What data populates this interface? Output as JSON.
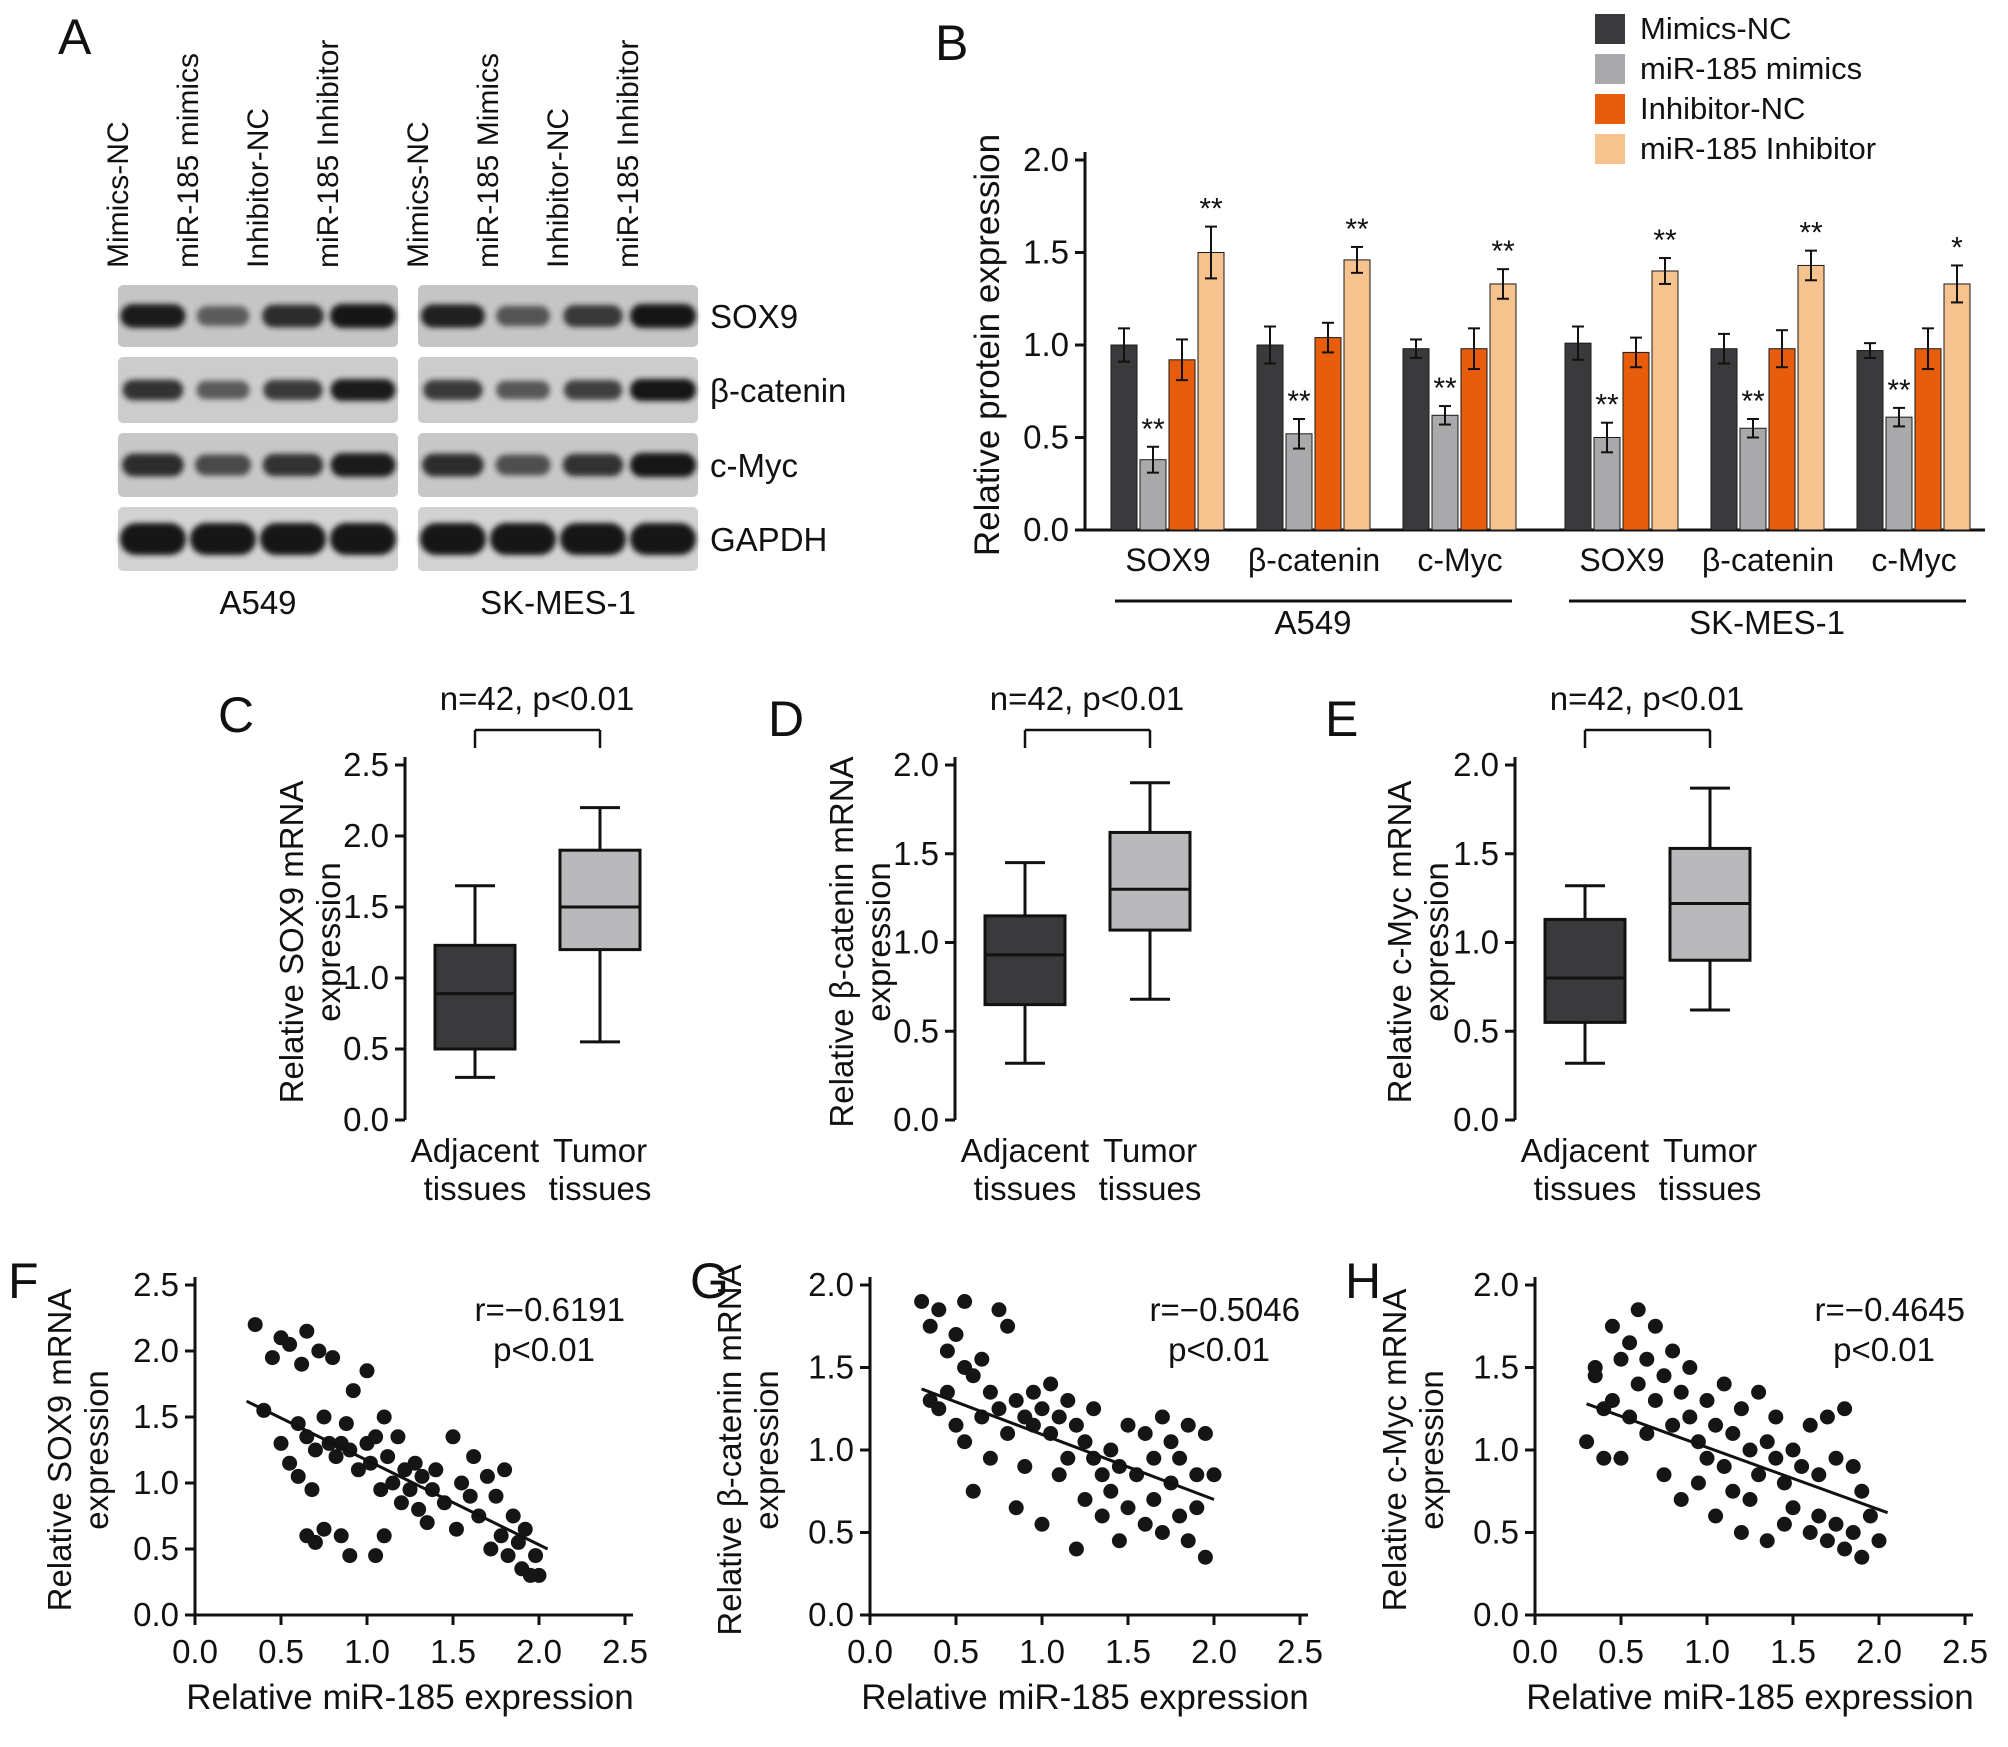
{
  "panels": {
    "A": {
      "label": "A",
      "lanes": [
        "Mimics-NC",
        "miR-185 mimics",
        "Inhibitor-NC",
        "miR-185 Inhibitor",
        "Mimics-NC",
        "miR-185 Mimics",
        "Inhibitor-NC",
        "miR-185 Inhibitor"
      ],
      "proteins": [
        "SOX9",
        "β-catenin",
        "c-Myc",
        "GAPDH"
      ],
      "cell_lines": [
        "A549",
        "SK-MES-1"
      ],
      "band_intensities": [
        [
          0.95,
          0.38,
          0.8,
          1.0,
          0.9,
          0.45,
          0.7,
          1.0
        ],
        [
          0.75,
          0.42,
          0.7,
          0.95,
          0.7,
          0.45,
          0.65,
          1.0
        ],
        [
          0.8,
          0.55,
          0.75,
          0.95,
          0.8,
          0.5,
          0.75,
          1.0
        ],
        [
          1,
          1,
          1,
          1,
          1,
          1,
          1,
          1
        ]
      ]
    },
    "B": {
      "label": "B"
    },
    "C": {
      "label": "C"
    },
    "D": {
      "label": "D"
    },
    "E": {
      "label": "E"
    },
    "F": {
      "label": "F"
    },
    "G": {
      "label": "G"
    },
    "H": {
      "label": "H"
    }
  },
  "chart_data": [
    {
      "id": "B",
      "type": "bar",
      "ylabel": "Relative protein expression",
      "ylim": [
        0,
        2.0
      ],
      "yticks": [
        0,
        0.5,
        1.0,
        1.5,
        2.0
      ],
      "categories": [
        "SOX9",
        "β-catenin",
        "c-Myc",
        "SOX9",
        "β-catenin",
        "c-Myc"
      ],
      "group_labels": [
        "A549",
        "SK-MES-1"
      ],
      "legend_position": "top-right",
      "series": [
        {
          "name": "Mimics-NC",
          "color": "#3a3a3c",
          "values": [
            1.0,
            1.0,
            0.98,
            1.01,
            0.98,
            0.97
          ],
          "errors": [
            0.09,
            0.1,
            0.05,
            0.09,
            0.08,
            0.04
          ],
          "sig": [
            "",
            "",
            "",
            "",
            "",
            ""
          ]
        },
        {
          "name": "miR-185 mimics",
          "color": "#a9a9ab",
          "values": [
            0.38,
            0.52,
            0.62,
            0.5,
            0.55,
            0.61
          ],
          "errors": [
            0.07,
            0.08,
            0.05,
            0.08,
            0.05,
            0.05
          ],
          "sig": [
            "**",
            "**",
            "**",
            "**",
            "**",
            "**"
          ]
        },
        {
          "name": "Inhibitor-NC",
          "color": "#e85d0c",
          "values": [
            0.92,
            1.04,
            0.98,
            0.96,
            0.98,
            0.98
          ],
          "errors": [
            0.11,
            0.08,
            0.11,
            0.08,
            0.1,
            0.11
          ],
          "sig": [
            "",
            "",
            "",
            "",
            "",
            ""
          ]
        },
        {
          "name": "miR-185 Inhibitor",
          "color": "#f6c28d",
          "values": [
            1.5,
            1.46,
            1.33,
            1.4,
            1.43,
            1.33
          ],
          "errors": [
            0.14,
            0.07,
            0.08,
            0.07,
            0.08,
            0.1
          ],
          "sig": [
            "**",
            "**",
            "**",
            "**",
            "**",
            "*"
          ]
        }
      ]
    },
    {
      "id": "C",
      "type": "box",
      "annotation": "n=42, p<0.01",
      "ylabel_lines": [
        "Relative SOX9 mRNA",
        "expression"
      ],
      "ylim": [
        0,
        2.5
      ],
      "yticks": [
        0,
        0.5,
        1.0,
        1.5,
        2.0,
        2.5
      ],
      "categories": [
        [
          "Adjacent",
          "tissues"
        ],
        [
          "Tumor",
          "tissues"
        ]
      ],
      "boxes": [
        {
          "whisker_low": 0.3,
          "q1": 0.5,
          "median": 0.89,
          "q3": 1.23,
          "whisker_high": 1.65,
          "fill": "#3a3a3c"
        },
        {
          "whisker_low": 0.55,
          "q1": 1.2,
          "median": 1.5,
          "q3": 1.9,
          "whisker_high": 2.2,
          "fill": "#b9b9bb"
        }
      ]
    },
    {
      "id": "D",
      "type": "box",
      "annotation": "n=42, p<0.01",
      "ylabel_lines": [
        "Relative β-catenin mRNA",
        "expression"
      ],
      "ylim": [
        0,
        2.0
      ],
      "yticks": [
        0,
        0.5,
        1.0,
        1.5,
        2.0
      ],
      "categories": [
        [
          "Adjacent",
          "tissues"
        ],
        [
          "Tumor",
          "tissues"
        ]
      ],
      "boxes": [
        {
          "whisker_low": 0.32,
          "q1": 0.65,
          "median": 0.93,
          "q3": 1.15,
          "whisker_high": 1.45,
          "fill": "#3a3a3c"
        },
        {
          "whisker_low": 0.68,
          "q1": 1.07,
          "median": 1.3,
          "q3": 1.62,
          "whisker_high": 1.9,
          "fill": "#b9b9bb"
        }
      ]
    },
    {
      "id": "E",
      "type": "box",
      "annotation": "n=42, p<0.01",
      "ylabel_lines": [
        "Relative c-Myc mRNA",
        "expression"
      ],
      "ylim": [
        0,
        2.0
      ],
      "yticks": [
        0,
        0.5,
        1.0,
        1.5,
        2.0
      ],
      "categories": [
        [
          "Adjacent",
          "tissues"
        ],
        [
          "Tumor",
          "tissues"
        ]
      ],
      "boxes": [
        {
          "whisker_low": 0.32,
          "q1": 0.55,
          "median": 0.8,
          "q3": 1.13,
          "whisker_high": 1.32,
          "fill": "#3a3a3c"
        },
        {
          "whisker_low": 0.62,
          "q1": 0.9,
          "median": 1.22,
          "q3": 1.53,
          "whisker_high": 1.87,
          "fill": "#b9b9bb"
        }
      ]
    },
    {
      "id": "F",
      "type": "scatter",
      "annotation_lines": [
        "r=−0.6191",
        "p<0.01"
      ],
      "xlabel": "Relative miR-185 expression",
      "ylabel_lines": [
        "Relative SOX9 mRNA",
        "expression"
      ],
      "xlim": [
        0,
        2.5
      ],
      "ylim": [
        0,
        2.5
      ],
      "xticks": [
        0,
        0.5,
        1.0,
        1.5,
        2.0,
        2.5
      ],
      "yticks": [
        0,
        0.5,
        1.0,
        1.5,
        2.0,
        2.5
      ],
      "regression_line": {
        "x1": 0.3,
        "y1": 1.62,
        "x2": 2.05,
        "y2": 0.5
      },
      "points": [
        [
          0.35,
          2.2
        ],
        [
          0.45,
          1.95
        ],
        [
          0.5,
          2.1
        ],
        [
          0.55,
          2.05
        ],
        [
          0.62,
          1.9
        ],
        [
          0.65,
          2.15
        ],
        [
          0.4,
          1.55
        ],
        [
          0.5,
          1.3
        ],
        [
          0.55,
          1.15
        ],
        [
          0.6,
          1.45
        ],
        [
          0.6,
          1.05
        ],
        [
          0.65,
          1.35
        ],
        [
          0.65,
          0.6
        ],
        [
          0.68,
          0.95
        ],
        [
          0.7,
          1.25
        ],
        [
          0.7,
          0.55
        ],
        [
          0.72,
          2.0
        ],
        [
          0.75,
          1.5
        ],
        [
          0.75,
          0.65
        ],
        [
          0.78,
          1.3
        ],
        [
          0.8,
          1.95
        ],
        [
          0.82,
          1.2
        ],
        [
          0.85,
          1.3
        ],
        [
          0.85,
          0.6
        ],
        [
          0.88,
          1.45
        ],
        [
          0.9,
          1.25
        ],
        [
          0.9,
          0.45
        ],
        [
          0.92,
          1.7
        ],
        [
          0.95,
          1.1
        ],
        [
          1.0,
          1.85
        ],
        [
          1.0,
          1.3
        ],
        [
          1.02,
          1.15
        ],
        [
          1.05,
          1.35
        ],
        [
          1.05,
          0.45
        ],
        [
          1.08,
          0.95
        ],
        [
          1.1,
          1.5
        ],
        [
          1.1,
          0.6
        ],
        [
          1.12,
          1.2
        ],
        [
          1.15,
          1.0
        ],
        [
          1.18,
          1.35
        ],
        [
          1.2,
          0.85
        ],
        [
          1.22,
          1.1
        ],
        [
          1.25,
          0.95
        ],
        [
          1.28,
          1.15
        ],
        [
          1.3,
          0.8
        ],
        [
          1.32,
          1.05
        ],
        [
          1.35,
          0.7
        ],
        [
          1.38,
          0.95
        ],
        [
          1.4,
          1.1
        ],
        [
          1.45,
          0.85
        ],
        [
          1.5,
          1.35
        ],
        [
          1.52,
          0.65
        ],
        [
          1.55,
          1.0
        ],
        [
          1.6,
          0.9
        ],
        [
          1.62,
          1.2
        ],
        [
          1.65,
          0.75
        ],
        [
          1.7,
          1.05
        ],
        [
          1.72,
          0.5
        ],
        [
          1.75,
          0.9
        ],
        [
          1.78,
          0.6
        ],
        [
          1.8,
          1.1
        ],
        [
          1.82,
          0.45
        ],
        [
          1.85,
          0.75
        ],
        [
          1.88,
          0.55
        ],
        [
          1.9,
          0.35
        ],
        [
          1.92,
          0.65
        ],
        [
          1.95,
          0.3
        ],
        [
          1.98,
          0.45
        ],
        [
          2.0,
          0.3
        ]
      ]
    },
    {
      "id": "G",
      "type": "scatter",
      "annotation_lines": [
        "r=−0.5046",
        "p<0.01"
      ],
      "xlabel": "Relative miR-185 expression",
      "ylabel_lines": [
        "Relative β-catenin mRNA",
        "expression"
      ],
      "xlim": [
        0,
        2.5
      ],
      "ylim": [
        0,
        2.0
      ],
      "xticks": [
        0,
        0.5,
        1.0,
        1.5,
        2.0,
        2.5
      ],
      "yticks": [
        0,
        0.5,
        1.0,
        1.5,
        2.0
      ],
      "regression_line": {
        "x1": 0.3,
        "y1": 1.37,
        "x2": 2.0,
        "y2": 0.7
      },
      "points": [
        [
          0.3,
          1.9
        ],
        [
          0.35,
          1.75
        ],
        [
          0.4,
          1.85
        ],
        [
          0.45,
          1.6
        ],
        [
          0.5,
          1.7
        ],
        [
          0.55,
          1.9
        ],
        [
          0.35,
          1.3
        ],
        [
          0.4,
          1.25
        ],
        [
          0.45,
          1.35
        ],
        [
          0.5,
          1.15
        ],
        [
          0.55,
          1.05
        ],
        [
          0.55,
          1.5
        ],
        [
          0.6,
          1.45
        ],
        [
          0.6,
          0.75
        ],
        [
          0.65,
          1.55
        ],
        [
          0.65,
          1.2
        ],
        [
          0.7,
          1.35
        ],
        [
          0.7,
          0.95
        ],
        [
          0.75,
          1.85
        ],
        [
          0.75,
          1.25
        ],
        [
          0.8,
          1.75
        ],
        [
          0.8,
          1.1
        ],
        [
          0.85,
          1.3
        ],
        [
          0.85,
          0.65
        ],
        [
          0.9,
          1.2
        ],
        [
          0.9,
          0.9
        ],
        [
          0.95,
          1.15
        ],
        [
          0.95,
          1.35
        ],
        [
          1.0,
          1.25
        ],
        [
          1.0,
          0.55
        ],
        [
          1.05,
          1.1
        ],
        [
          1.05,
          1.4
        ],
        [
          1.1,
          1.2
        ],
        [
          1.1,
          0.85
        ],
        [
          1.15,
          1.3
        ],
        [
          1.15,
          0.95
        ],
        [
          1.2,
          1.15
        ],
        [
          1.2,
          0.4
        ],
        [
          1.25,
          1.05
        ],
        [
          1.25,
          0.7
        ],
        [
          1.3,
          0.95
        ],
        [
          1.3,
          1.25
        ],
        [
          1.35,
          0.85
        ],
        [
          1.35,
          0.6
        ],
        [
          1.4,
          1.0
        ],
        [
          1.4,
          0.75
        ],
        [
          1.45,
          0.9
        ],
        [
          1.45,
          0.45
        ],
        [
          1.5,
          1.15
        ],
        [
          1.5,
          0.65
        ],
        [
          1.55,
          0.85
        ],
        [
          1.6,
          1.1
        ],
        [
          1.6,
          0.55
        ],
        [
          1.65,
          0.95
        ],
        [
          1.65,
          0.7
        ],
        [
          1.7,
          1.2
        ],
        [
          1.7,
          0.5
        ],
        [
          1.75,
          1.05
        ],
        [
          1.75,
          0.8
        ],
        [
          1.8,
          0.95
        ],
        [
          1.8,
          0.6
        ],
        [
          1.85,
          1.15
        ],
        [
          1.85,
          0.45
        ],
        [
          1.9,
          0.85
        ],
        [
          1.9,
          0.65
        ],
        [
          1.95,
          1.1
        ],
        [
          1.95,
          0.35
        ],
        [
          2.0,
          0.85
        ]
      ]
    },
    {
      "id": "H",
      "type": "scatter",
      "annotation_lines": [
        "r=−0.4645",
        "p<0.01"
      ],
      "xlabel": "Relative miR-185 expression",
      "ylabel_lines": [
        "Relative c-Myc mRNA",
        "expression"
      ],
      "xlim": [
        0,
        2.5
      ],
      "ylim": [
        0,
        2.0
      ],
      "xticks": [
        0,
        0.5,
        1.0,
        1.5,
        2.0,
        2.5
      ],
      "yticks": [
        0,
        0.5,
        1.0,
        1.5,
        2.0
      ],
      "regression_line": {
        "x1": 0.3,
        "y1": 1.28,
        "x2": 2.05,
        "y2": 0.62
      },
      "points": [
        [
          0.3,
          1.05
        ],
        [
          0.35,
          1.5
        ],
        [
          0.35,
          1.45
        ],
        [
          0.4,
          1.25
        ],
        [
          0.4,
          0.95
        ],
        [
          0.45,
          1.75
        ],
        [
          0.45,
          1.3
        ],
        [
          0.5,
          1.55
        ],
        [
          0.5,
          0.95
        ],
        [
          0.55,
          1.65
        ],
        [
          0.55,
          1.2
        ],
        [
          0.6,
          1.85
        ],
        [
          0.6,
          1.4
        ],
        [
          0.65,
          1.55
        ],
        [
          0.65,
          1.1
        ],
        [
          0.7,
          1.75
        ],
        [
          0.7,
          1.3
        ],
        [
          0.75,
          1.45
        ],
        [
          0.75,
          0.85
        ],
        [
          0.8,
          1.6
        ],
        [
          0.8,
          1.15
        ],
        [
          0.85,
          1.35
        ],
        [
          0.85,
          0.7
        ],
        [
          0.9,
          1.2
        ],
        [
          0.9,
          1.5
        ],
        [
          0.95,
          1.05
        ],
        [
          0.95,
          0.8
        ],
        [
          1.0,
          1.3
        ],
        [
          1.0,
          0.95
        ],
        [
          1.05,
          1.15
        ],
        [
          1.05,
          0.6
        ],
        [
          1.1,
          1.4
        ],
        [
          1.1,
          0.9
        ],
        [
          1.15,
          1.1
        ],
        [
          1.15,
          0.75
        ],
        [
          1.2,
          1.25
        ],
        [
          1.2,
          0.5
        ],
        [
          1.25,
          1.0
        ],
        [
          1.25,
          0.7
        ],
        [
          1.3,
          1.35
        ],
        [
          1.3,
          0.85
        ],
        [
          1.35,
          1.05
        ],
        [
          1.35,
          0.45
        ],
        [
          1.4,
          0.95
        ],
        [
          1.4,
          1.2
        ],
        [
          1.45,
          0.8
        ],
        [
          1.45,
          0.55
        ],
        [
          1.5,
          1.0
        ],
        [
          1.5,
          0.65
        ],
        [
          1.55,
          0.9
        ],
        [
          1.6,
          1.15
        ],
        [
          1.6,
          0.5
        ],
        [
          1.65,
          0.85
        ],
        [
          1.65,
          0.6
        ],
        [
          1.7,
          1.2
        ],
        [
          1.7,
          0.45
        ],
        [
          1.75,
          0.95
        ],
        [
          1.75,
          0.55
        ],
        [
          1.8,
          1.25
        ],
        [
          1.8,
          0.4
        ],
        [
          1.85,
          0.9
        ],
        [
          1.85,
          0.5
        ],
        [
          1.9,
          0.75
        ],
        [
          1.9,
          0.35
        ],
        [
          1.95,
          0.6
        ],
        [
          2.0,
          0.45
        ]
      ]
    }
  ]
}
